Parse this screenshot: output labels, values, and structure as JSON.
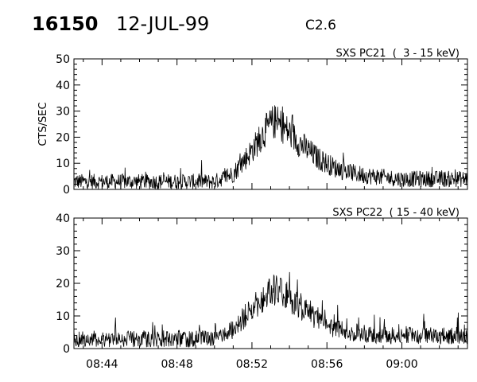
{
  "header": {
    "event_id": "16150",
    "date": "12-JUL-99",
    "flare_class": "C2.6"
  },
  "chart_data": [
    {
      "type": "line",
      "title": "SXS PC21  (  3 - 15 keV)",
      "ylabel": "CTS/SEC",
      "xlabel": "",
      "ylim": [
        0,
        50
      ],
      "yticks": [
        0,
        10,
        20,
        30,
        40,
        50
      ],
      "xlim": [
        "08:42:30",
        "09:03:30"
      ],
      "xticks": [
        "08:44",
        "08:48",
        "08:52",
        "08:56",
        "09:00"
      ],
      "xtick_labels_shown": false,
      "series": [
        {
          "x": [
            "08:42:30",
            "08:44:00",
            "08:46:00",
            "08:48:00",
            "08:50:00",
            "08:51:00",
            "08:52:00",
            "08:52:40",
            "08:53:10",
            "08:53:40",
            "08:54:30",
            "08:55:30",
            "08:56:30",
            "08:57:30",
            "08:58:30",
            "09:00:00",
            "09:02:00",
            "09:03:30"
          ],
          "values": [
            3,
            3,
            3,
            3,
            3,
            6,
            15,
            22,
            26,
            24,
            18,
            12,
            8,
            6,
            5,
            4,
            4,
            4
          ],
          "noise_amplitude": 3.5
        }
      ]
    },
    {
      "type": "line",
      "title": "SXS PC22  ( 15 - 40 keV)",
      "ylabel": "",
      "xlabel": "",
      "ylim": [
        0,
        40
      ],
      "yticks": [
        0,
        10,
        20,
        30,
        40
      ],
      "xlim": [
        "08:42:30",
        "09:03:30"
      ],
      "xticks": [
        "08:44",
        "08:48",
        "08:52",
        "08:56",
        "09:00"
      ],
      "xtick_labels_shown": true,
      "series": [
        {
          "x": [
            "08:42:30",
            "08:44:00",
            "08:46:00",
            "08:48:00",
            "08:50:00",
            "08:51:00",
            "08:52:00",
            "08:52:40",
            "08:53:10",
            "08:53:40",
            "08:54:30",
            "08:55:30",
            "08:56:30",
            "08:57:30",
            "08:58:30",
            "09:00:00",
            "09:02:00",
            "09:03:30"
          ],
          "values": [
            3,
            3,
            3,
            3,
            3,
            6,
            12,
            16,
            18,
            17,
            13,
            9,
            6,
            5,
            4,
            4,
            4,
            4
          ],
          "noise_amplitude": 3.0
        }
      ]
    }
  ]
}
